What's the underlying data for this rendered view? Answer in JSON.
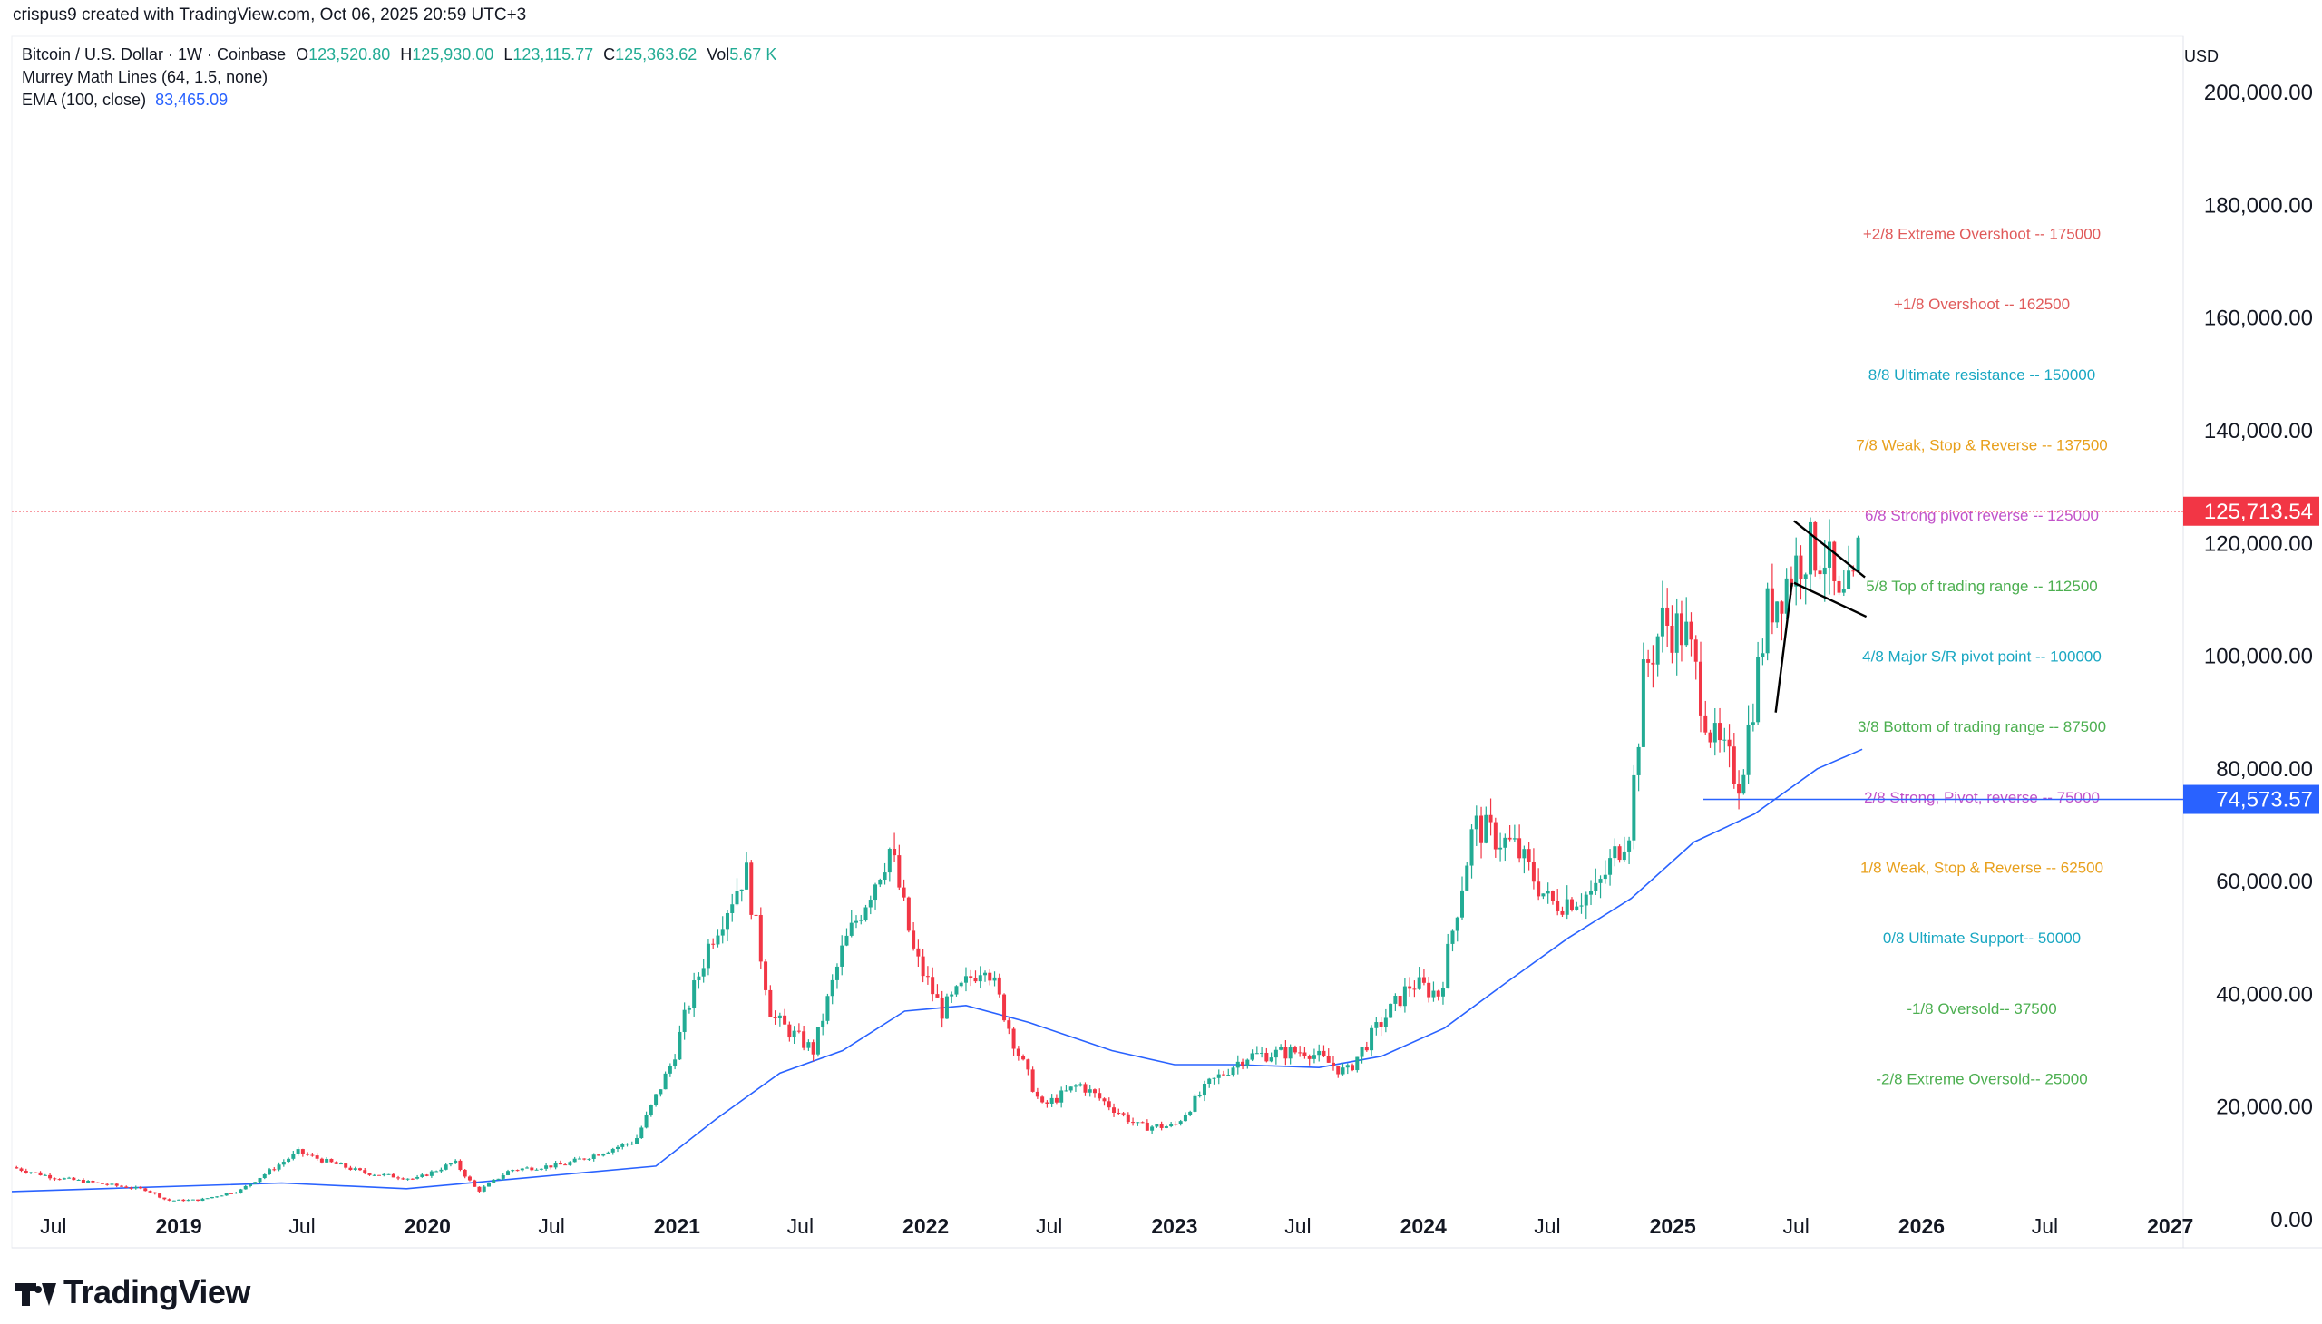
{
  "header": {
    "credit": "crispus9 created with TradingView.com, Oct 06, 2025 20:59 UTC+3"
  },
  "legend": {
    "symbol": "Bitcoin / U.S. Dollar · 1W · Coinbase",
    "open_label": "O",
    "open": "123,520.80",
    "high_label": "H",
    "high": "125,930.00",
    "low_label": "L",
    "low": "123,115.77",
    "close_label": "C",
    "close": "125,363.62",
    "vol_label": "Vol",
    "vol": "5.67 K",
    "indicator1": "Murrey Math Lines (64, 1.5, none)",
    "indicator2": "EMA (100, close)",
    "indicator2_value": "83,465.09"
  },
  "currency": "USD",
  "brand": "TradingView",
  "colors": {
    "up": "#22ab94",
    "down": "#f23645",
    "ema": "#2962ff",
    "price_line": "#f23645",
    "support_line": "#2962ff"
  },
  "chart_data": {
    "type": "candlestick",
    "title": "Bitcoin / U.S. Dollar · 1W · Coinbase",
    "ylim": [
      -5000,
      210000
    ],
    "y_ticks": [
      {
        "value": 0,
        "label": "0.00"
      },
      {
        "value": 20000,
        "label": "20,000.00"
      },
      {
        "value": 40000,
        "label": "40,000.00"
      },
      {
        "value": 60000,
        "label": "60,000.00"
      },
      {
        "value": 80000,
        "label": "80,000.00"
      },
      {
        "value": 100000,
        "label": "100,000.00"
      },
      {
        "value": 120000,
        "label": "120,000.00"
      },
      {
        "value": 140000,
        "label": "140,000.00"
      },
      {
        "value": 160000,
        "label": "160,000.00"
      },
      {
        "value": 180000,
        "label": "180,000.00"
      },
      {
        "value": 200000,
        "label": "200,000.00"
      }
    ],
    "x_range": [
      "2018-05-01",
      "2027-01-20"
    ],
    "x_ticks": [
      {
        "date": "2018-07-01",
        "label": "Jul",
        "bold": false
      },
      {
        "date": "2019-01-01",
        "label": "2019",
        "bold": true
      },
      {
        "date": "2019-07-01",
        "label": "Jul",
        "bold": false
      },
      {
        "date": "2020-01-01",
        "label": "2020",
        "bold": true
      },
      {
        "date": "2020-07-01",
        "label": "Jul",
        "bold": false
      },
      {
        "date": "2021-01-01",
        "label": "2021",
        "bold": true
      },
      {
        "date": "2021-07-01",
        "label": "Jul",
        "bold": false
      },
      {
        "date": "2022-01-01",
        "label": "2022",
        "bold": true
      },
      {
        "date": "2022-07-01",
        "label": "Jul",
        "bold": false
      },
      {
        "date": "2023-01-01",
        "label": "2023",
        "bold": true
      },
      {
        "date": "2023-07-01",
        "label": "Jul",
        "bold": false
      },
      {
        "date": "2024-01-01",
        "label": "2024",
        "bold": true
      },
      {
        "date": "2024-07-01",
        "label": "Jul",
        "bold": false
      },
      {
        "date": "2025-01-01",
        "label": "2025",
        "bold": true
      },
      {
        "date": "2025-07-01",
        "label": "Jul",
        "bold": false
      },
      {
        "date": "2026-01-01",
        "label": "2026",
        "bold": true
      },
      {
        "date": "2026-07-01",
        "label": "Jul",
        "bold": false
      },
      {
        "date": "2027-01-01",
        "label": "2027",
        "bold": true
      }
    ],
    "price_close_path": [
      [
        "2018-05-01",
        9300
      ],
      [
        "2018-07-01",
        7500
      ],
      [
        "2018-09-01",
        6500
      ],
      [
        "2018-11-15",
        5300
      ],
      [
        "2018-12-15",
        3400
      ],
      [
        "2019-02-01",
        3500
      ],
      [
        "2019-04-01",
        5200
      ],
      [
        "2019-06-25",
        12000
      ],
      [
        "2019-08-01",
        10500
      ],
      [
        "2019-10-01",
        8300
      ],
      [
        "2019-12-15",
        7200
      ],
      [
        "2020-02-10",
        10200
      ],
      [
        "2020-03-15",
        5000
      ],
      [
        "2020-05-01",
        8800
      ],
      [
        "2020-07-20",
        9800
      ],
      [
        "2020-09-01",
        11500
      ],
      [
        "2020-11-01",
        14000
      ],
      [
        "2020-12-25",
        28000
      ],
      [
        "2021-01-15",
        37000
      ],
      [
        "2021-02-20",
        50000
      ],
      [
        "2021-04-12",
        62000
      ],
      [
        "2021-05-20",
        36000
      ],
      [
        "2021-07-20",
        30000
      ],
      [
        "2021-09-01",
        48000
      ],
      [
        "2021-11-10",
        66000
      ],
      [
        "2021-12-15",
        47000
      ],
      [
        "2022-01-25",
        37000
      ],
      [
        "2022-03-30",
        46000
      ],
      [
        "2022-05-15",
        30000
      ],
      [
        "2022-06-20",
        20000
      ],
      [
        "2022-08-15",
        24000
      ],
      [
        "2022-11-10",
        16500
      ],
      [
        "2023-01-01",
        16600
      ],
      [
        "2023-02-20",
        24000
      ],
      [
        "2023-04-15",
        29000
      ],
      [
        "2023-07-15",
        30000
      ],
      [
        "2023-09-10",
        26000
      ],
      [
        "2023-10-25",
        34000
      ],
      [
        "2023-12-15",
        42000
      ],
      [
        "2024-01-25",
        40000
      ],
      [
        "2024-03-15",
        70000
      ],
      [
        "2024-05-15",
        66000
      ],
      [
        "2024-07-05",
        56000
      ],
      [
        "2024-09-10",
        58000
      ],
      [
        "2024-10-30",
        70000
      ],
      [
        "2024-11-20",
        97000
      ],
      [
        "2024-12-17",
        106000
      ],
      [
        "2025-01-20",
        104000
      ],
      [
        "2025-03-01",
        85000
      ],
      [
        "2025-04-10",
        78000
      ],
      [
        "2025-05-20",
        108000
      ],
      [
        "2025-07-14",
        119000
      ],
      [
        "2025-08-14",
        118000
      ],
      [
        "2025-09-01",
        108000
      ],
      [
        "2025-09-25",
        112000
      ],
      [
        "2025-10-06",
        125363
      ]
    ],
    "ema_100": [
      [
        "2018-05-01",
        5000
      ],
      [
        "2019-06-01",
        6500
      ],
      [
        "2019-12-01",
        5500
      ],
      [
        "2020-06-01",
        7500
      ],
      [
        "2020-12-01",
        9500
      ],
      [
        "2021-03-01",
        18000
      ],
      [
        "2021-06-01",
        26000
      ],
      [
        "2021-09-01",
        30000
      ],
      [
        "2021-12-01",
        37000
      ],
      [
        "2022-03-01",
        38000
      ],
      [
        "2022-06-01",
        35000
      ],
      [
        "2022-10-01",
        30000
      ],
      [
        "2023-01-01",
        27500
      ],
      [
        "2023-04-01",
        27500
      ],
      [
        "2023-08-01",
        27000
      ],
      [
        "2023-11-01",
        29000
      ],
      [
        "2024-02-01",
        34000
      ],
      [
        "2024-05-01",
        42000
      ],
      [
        "2024-08-01",
        50000
      ],
      [
        "2024-11-01",
        57000
      ],
      [
        "2025-02-01",
        67000
      ],
      [
        "2025-05-01",
        72000
      ],
      [
        "2025-08-01",
        80000
      ],
      [
        "2025-10-06",
        83465
      ]
    ],
    "murrey_levels": [
      {
        "label": "+2/8 Extreme Overshoot --  175000",
        "value": 175000,
        "color": "#e05a5a"
      },
      {
        "label": "+1/8 Overshoot --  162500",
        "value": 162500,
        "color": "#e05a5a"
      },
      {
        "label": "8/8 Ultimate resistance --  150000",
        "value": 150000,
        "color": "#19a7c2"
      },
      {
        "label": "7/8 Weak, Stop & Reverse --  137500",
        "value": 137500,
        "color": "#e8a01c"
      },
      {
        "label": "6/8 Strong pivot reverse --  125000",
        "value": 125000,
        "color": "#c252c9"
      },
      {
        "label": "5/8 Top of trading range --  112500",
        "value": 112500,
        "color": "#4caf50"
      },
      {
        "label": "4/8 Major S/R pivot point --  100000",
        "value": 100000,
        "color": "#19a7c2"
      },
      {
        "label": "3/8 Bottom of trading range --  87500",
        "value": 87500,
        "color": "#4caf50"
      },
      {
        "label": "2/8 Strong, Pivot, reverse --  75000",
        "value": 75000,
        "color": "#c252c9"
      },
      {
        "label": "1/8 Weak, Stop & Reverse --  62500",
        "value": 62500,
        "color": "#e8a01c"
      },
      {
        "label": "0/8 Ultimate Support--  50000",
        "value": 50000,
        "color": "#19a7c2"
      },
      {
        "label": "-1/8 Oversold--  37500",
        "value": 37500,
        "color": "#4caf50"
      },
      {
        "label": "-2/8 Extreme Oversold--  25000",
        "value": 25000,
        "color": "#4caf50"
      }
    ],
    "price_badge": {
      "value": 125713.54,
      "label": "125,713.54"
    },
    "support_badge": {
      "value": 74573.57,
      "label": "74,573.57",
      "from": "2025-02-15"
    },
    "flag_pattern": {
      "pole": [
        [
          "2025-06-01",
          90000
        ],
        [
          "2025-06-25",
          113000
        ]
      ],
      "upper": [
        [
          "2025-06-28",
          124000
        ],
        [
          "2025-10-10",
          114000
        ]
      ],
      "lower": [
        [
          "2025-06-28",
          113000
        ],
        [
          "2025-10-12",
          107000
        ]
      ]
    }
  }
}
